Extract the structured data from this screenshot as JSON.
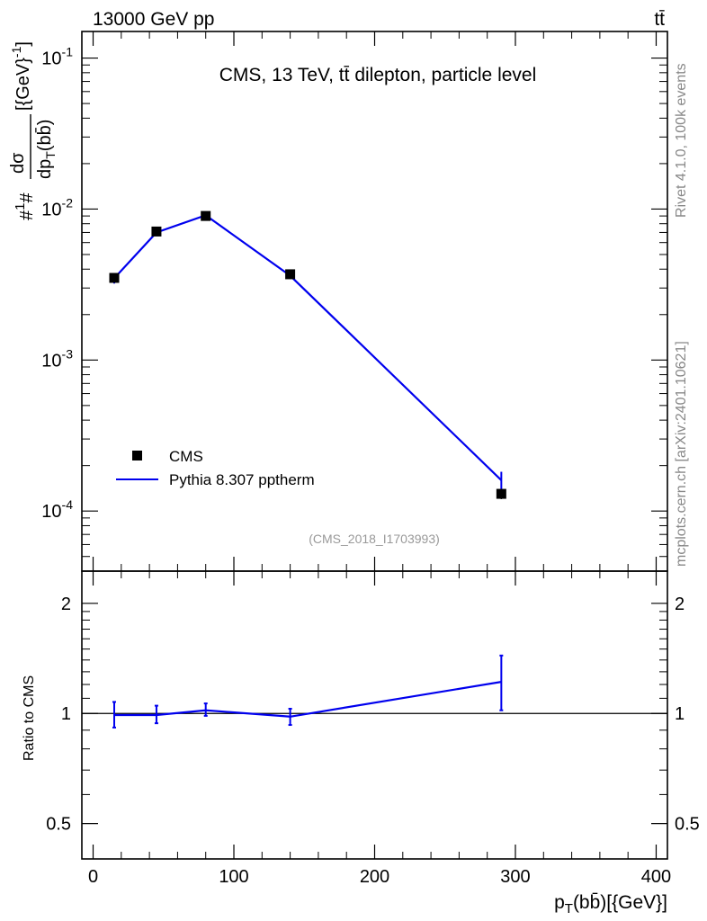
{
  "header": {
    "energy_label": "13000 GeV pp",
    "process_label": "tt̄"
  },
  "side_labels": {
    "rivet": "Rivet 4.1.0,  100k events",
    "source": "mcplots.cern.ch [arXiv:2401.10621]"
  },
  "colors": {
    "data": "#000000",
    "mc": "#0000ee",
    "ref_source": "#999999"
  },
  "chart_data": [
    {
      "type": "line",
      "title": "CMS, 13 TeV, tt̄ dilepton, particle level",
      "ylabel": "#1/σ# dσ/dp_T(bb̄) [{GeV}^-1]",
      "xlabel": "",
      "yscale": "log",
      "xlim": [
        -8,
        408
      ],
      "ylim": [
        4e-05,
        0.15
      ],
      "y_tick_labels": [
        "10^-1",
        "10^-2",
        "10^-3",
        "10^-4"
      ],
      "y_ticks": [
        0.1,
        0.01,
        0.001,
        0.0001
      ],
      "ref_source": "(CMS_2018_I1703993)",
      "legend": [
        "CMS",
        "Pythia 8.307 pptherm"
      ],
      "legend_position": "lower-left",
      "series": [
        {
          "name": "CMS",
          "style": "markers",
          "x": [
            15,
            45,
            80,
            140,
            290
          ],
          "y": [
            0.0035,
            0.0071,
            0.009,
            0.0037,
            0.00013
          ],
          "err": [
            0.0002,
            0.0003,
            0.0004,
            0.0002,
            1e-05
          ]
        },
        {
          "name": "Pythia 8.307 pptherm",
          "style": "line",
          "x": [
            15,
            45,
            80,
            140,
            290
          ],
          "y": [
            0.00348,
            0.007,
            0.0091,
            0.00362,
            0.00016
          ],
          "err": [
            0.00027,
            0.00028,
            0.00028,
            0.00018,
            2.2e-05
          ]
        }
      ]
    },
    {
      "type": "line",
      "title": "",
      "xlabel": "p_T(bb̄) [{GeV}]",
      "ylabel": "Ratio to CMS",
      "yscale": "log",
      "xlim": [
        -8,
        408
      ],
      "ylim": [
        0.4,
        2.45
      ],
      "x_ticks": [
        0,
        100,
        200,
        300,
        400
      ],
      "x_tick_labels": [
        "0",
        "100",
        "200",
        "300",
        "400"
      ],
      "y_ticks": [
        0.5,
        1,
        2
      ],
      "y_tick_labels": [
        "0.5",
        "1",
        "2"
      ],
      "series": [
        {
          "name": "Pythia 8.307 pptherm / CMS",
          "x": [
            15,
            45,
            80,
            140,
            290
          ],
          "y": [
            0.99,
            0.99,
            1.02,
            0.98,
            1.22
          ],
          "err_low": [
            0.075,
            0.05,
            0.035,
            0.05,
            0.2
          ],
          "err_high": [
            0.085,
            0.06,
            0.045,
            0.05,
            0.22
          ]
        }
      ]
    }
  ]
}
